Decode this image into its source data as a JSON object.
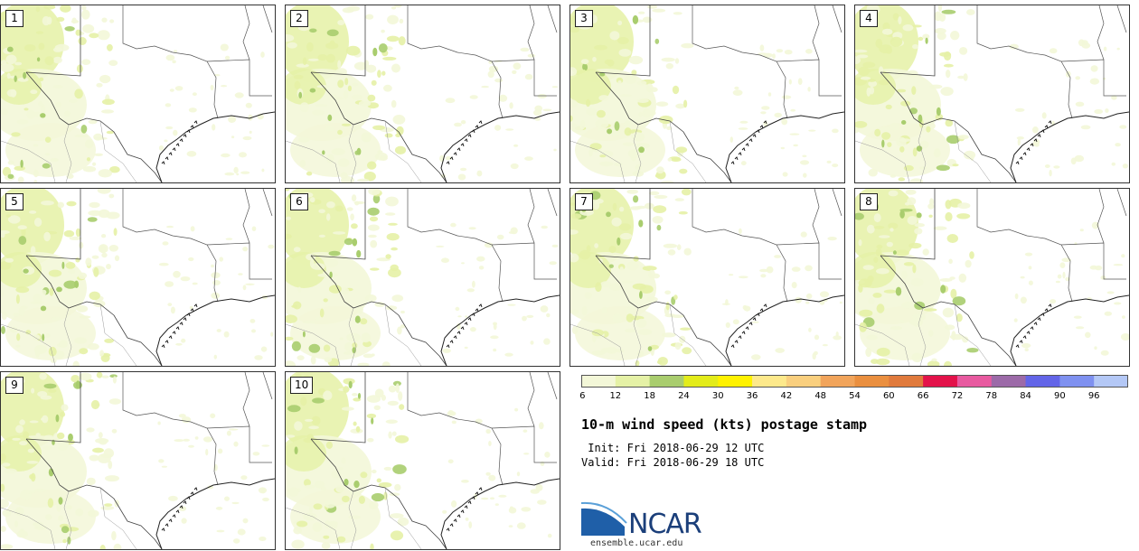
{
  "panels": [
    {
      "label": "1"
    },
    {
      "label": "2"
    },
    {
      "label": "3"
    },
    {
      "label": "4"
    },
    {
      "label": "5"
    },
    {
      "label": "6"
    },
    {
      "label": "7"
    },
    {
      "label": "8"
    },
    {
      "label": "9"
    },
    {
      "label": "10"
    }
  ],
  "colorbar": {
    "bins": [
      6,
      12,
      18,
      24,
      30,
      36,
      42,
      48,
      54,
      60,
      66,
      72,
      78,
      84,
      90,
      96
    ],
    "tick_labels": [
      "6",
      "12",
      "18",
      "24",
      "30",
      "36",
      "42",
      "48",
      "54",
      "60",
      "66",
      "72",
      "78",
      "84",
      "90",
      "96"
    ],
    "colors": [
      "#f3f7d8",
      "#e5f1a6",
      "#a9cd6e",
      "#e3ec1a",
      "#fff200",
      "#fde98b",
      "#f9cf7e",
      "#f1a45b",
      "#ea8f3f",
      "#e07a3c",
      "#e3124a",
      "#e85aa0",
      "#9c6aa8",
      "#6365e8",
      "#7f91f0",
      "#b4c8f6"
    ]
  },
  "title": "10-m wind speed (kts) postage stamp",
  "init_line": " Init: Fri 2018-06-29 12 UTC",
  "valid_line": "Valid: Fri 2018-06-29 18 UTC",
  "logo": {
    "name": "NCAR",
    "url": "ensemble.ucar.edu"
  }
}
